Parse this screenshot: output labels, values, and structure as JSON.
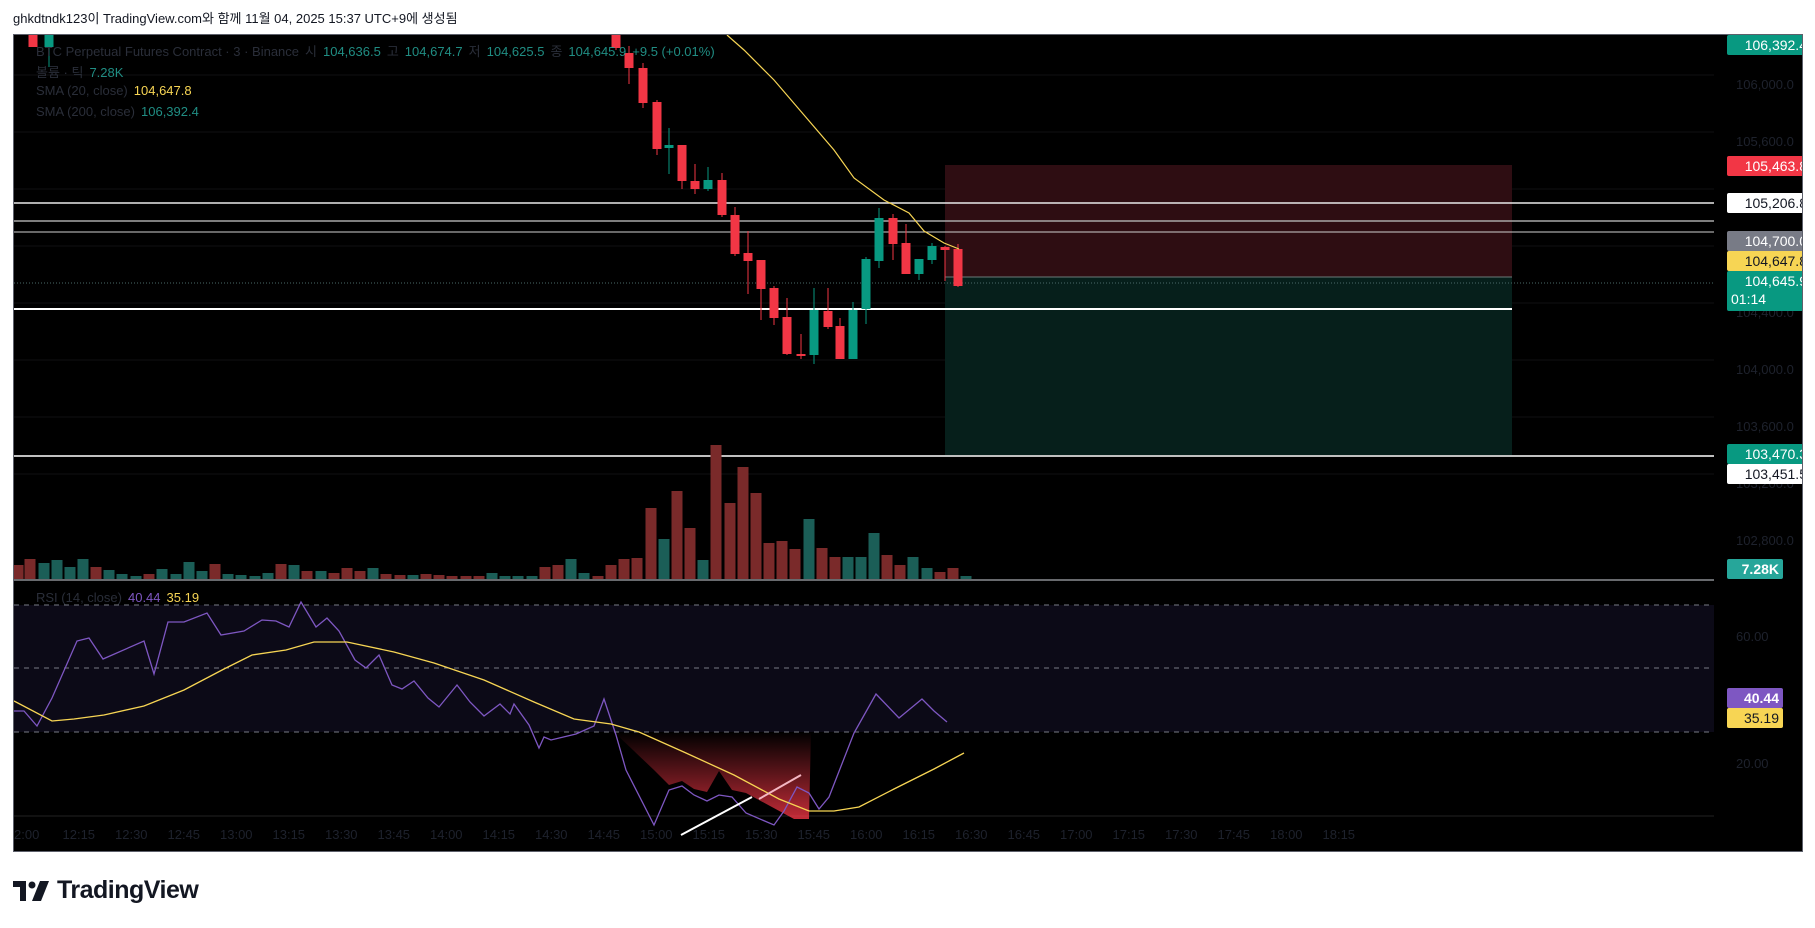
{
  "caption": "ghkdtndk123이 TradingView.com와 함께 11월 04, 2025 15:37 UTC+9에 생성됨",
  "legend": {
    "symbol": "BTC Perpetual Futures Contract · 3 · Binance",
    "open_label": "시",
    "open": "104,636.5",
    "high_label": "고",
    "high": "104,674.7",
    "low_label": "저",
    "low": "104,625.5",
    "close_label": "종",
    "close": "104,645.9",
    "change": "+9.5 (+0.01%)",
    "volume_label": "볼륨 · 틱",
    "volume": "7.28K",
    "sma20_label": "SMA (20, close)",
    "sma20": "104,647.8",
    "sma200_label": "SMA (200, close)",
    "sma200": "106,392.4",
    "rsi_label": "RSI (14, close)",
    "rsi": "40.44",
    "rsi_ma": "35.19"
  },
  "price_axis": {
    "ticks": [
      "106,000.0",
      "105,600.0",
      "104,400.0",
      "104,000.0",
      "103,600.0",
      "103,200.0",
      "102,800.0"
    ],
    "tags": {
      "sma200": "106,392.4",
      "stop": "105,463.8",
      "line_upper": "105,206.8",
      "line_mid": "104,700.0",
      "sma20": "104,647.8",
      "last": "104,645.9",
      "countdown": "01:14",
      "target": "103,470.3",
      "line_lower": "103,451.5",
      "volume": "7.28K"
    }
  },
  "rsi_axis": {
    "ticks": [
      "60.00",
      "20.00"
    ],
    "rsi": "40.44",
    "rsi_ma": "35.19"
  },
  "time_axis": [
    "2:00",
    "12:15",
    "12:30",
    "12:45",
    "13:00",
    "13:15",
    "13:30",
    "13:45",
    "14:00",
    "14:15",
    "14:30",
    "14:45",
    "15:00",
    "15:15",
    "15:30",
    "15:45",
    "16:00",
    "16:15",
    "16:30",
    "16:45",
    "17:00",
    "17:15",
    "17:30",
    "17:45",
    "18:00",
    "18:15"
  ],
  "brand": "TradingView",
  "colors": {
    "up": "#089981",
    "down": "#f23645",
    "sma20": "#f7d554",
    "rsi": "#7e57c2",
    "rsi_ma": "#f7d554",
    "vol_up": "#1b5e57",
    "vol_down": "#7a2a2a"
  }
}
